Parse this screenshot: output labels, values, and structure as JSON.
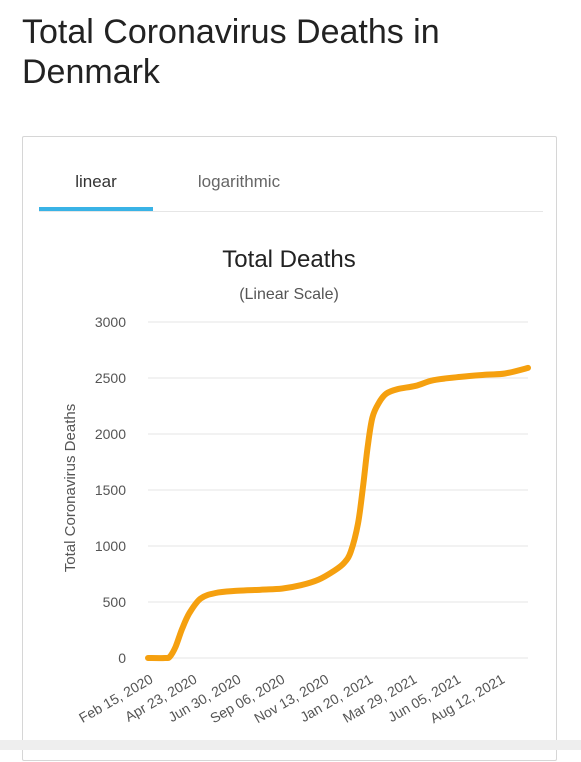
{
  "page": {
    "title": "Total Coronavirus Deaths in Denmark"
  },
  "tabs": [
    {
      "label": "linear",
      "active": true
    },
    {
      "label": "logarithmic",
      "active": false
    }
  ],
  "colors": {
    "line": "#f5a00f",
    "tab_underline": "#39b3e6",
    "grid": "#e6e6e6"
  },
  "chart_data": {
    "type": "line",
    "title": "Total Deaths",
    "subtitle": "(Linear Scale)",
    "ylabel": "Total Coronavirus Deaths",
    "xlabel": "",
    "ylim": [
      0,
      3000
    ],
    "yticks": [
      0,
      500,
      1000,
      1500,
      2000,
      2500,
      3000
    ],
    "xtick_labels": [
      "Feb 15, 2020",
      "Apr 23, 2020",
      "Jun 30, 2020",
      "Sep 06, 2020",
      "Nov 13, 2020",
      "Jan 20, 2021",
      "Mar 29, 2021",
      "Jun 05, 2021",
      "Aug 12, 2021"
    ],
    "xlim": [
      "2020-02-15",
      "2021-09-16"
    ],
    "grid": true,
    "legend": "none",
    "series": [
      {
        "x": [
          "2020-02-15",
          "2020-03-12",
          "2020-03-19",
          "2020-03-28",
          "2020-04-07",
          "2020-04-18",
          "2020-05-05",
          "2020-05-28",
          "2020-06-30",
          "2020-08-05",
          "2020-09-06",
          "2020-10-05",
          "2020-11-01",
          "2020-11-25",
          "2020-12-10",
          "2020-12-20",
          "2020-12-31",
          "2021-01-08",
          "2021-01-15",
          "2021-01-22",
          "2021-02-01",
          "2021-02-12",
          "2021-03-01",
          "2021-03-29",
          "2021-04-25",
          "2021-06-05",
          "2021-07-15",
          "2021-08-12",
          "2021-09-16"
        ],
        "y": [
          0,
          0,
          10,
          100,
          260,
          400,
          530,
          580,
          600,
          610,
          620,
          650,
          700,
          780,
          850,
          950,
          1200,
          1550,
          1900,
          2150,
          2280,
          2360,
          2400,
          2430,
          2480,
          2510,
          2530,
          2540,
          2590
        ]
      }
    ]
  }
}
